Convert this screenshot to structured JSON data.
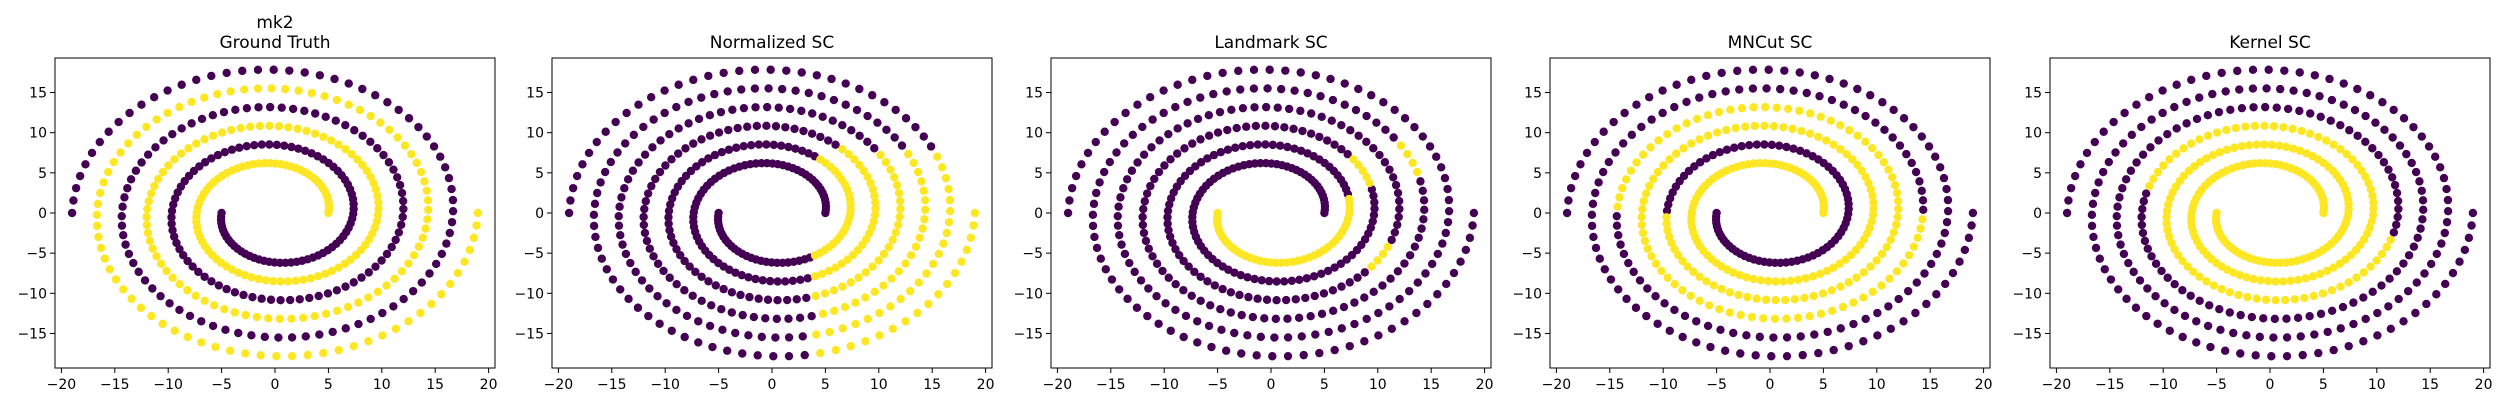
{
  "chart_data": [
    {
      "type": "scatter",
      "title_line1": "mk2",
      "title": "Ground Truth",
      "method": "truth",
      "xlim": [
        -20.6,
        20.6
      ],
      "ylim": [
        -19.3,
        19.3
      ],
      "xticks": [
        -20,
        -15,
        -10,
        -5,
        0,
        5,
        10,
        15,
        20
      ],
      "yticks": [
        -15,
        -10,
        -5,
        0,
        5,
        10,
        15
      ]
    },
    {
      "type": "scatter",
      "title": "Normalized SC",
      "method": "normalized",
      "xlim": [
        -20.6,
        20.6
      ],
      "ylim": [
        -19.3,
        19.3
      ],
      "xticks": [
        -20,
        -15,
        -10,
        -5,
        0,
        5,
        10,
        15,
        20
      ],
      "yticks": [
        -15,
        -10,
        -5,
        0,
        5,
        10,
        15
      ]
    },
    {
      "type": "scatter",
      "title": "Landmark SC",
      "method": "landmark",
      "xlim": [
        -20.6,
        20.6
      ],
      "ylim": [
        -19.3,
        19.3
      ],
      "xticks": [
        -20,
        -15,
        -10,
        -5,
        0,
        5,
        10,
        15,
        20
      ],
      "yticks": [
        -15,
        -10,
        -5,
        0,
        5,
        10,
        15
      ]
    },
    {
      "type": "scatter",
      "title": "MNCut SC",
      "method": "mncut",
      "xlim": [
        -20.6,
        20.6
      ],
      "ylim": [
        -19.3,
        19.3
      ],
      "xticks": [
        -20,
        -15,
        -10,
        -5,
        0,
        5,
        10,
        15,
        20
      ],
      "yticks": [
        -15,
        -10,
        -5,
        0,
        5,
        10,
        15
      ]
    },
    {
      "type": "scatter",
      "title": "Kernel SC",
      "method": "kernel",
      "xlim": [
        -20.6,
        20.6
      ],
      "ylim": [
        -19.3,
        19.3
      ],
      "xticks": [
        -20,
        -15,
        -10,
        -5,
        0,
        5,
        10,
        15,
        20
      ],
      "yticks": [
        -15,
        -10,
        -5,
        0,
        5,
        10,
        15
      ]
    }
  ],
  "colors": {
    "cluster_0": "#440154",
    "cluster_1": "#fde725",
    "axis": "#000000",
    "background": "#ffffff"
  }
}
